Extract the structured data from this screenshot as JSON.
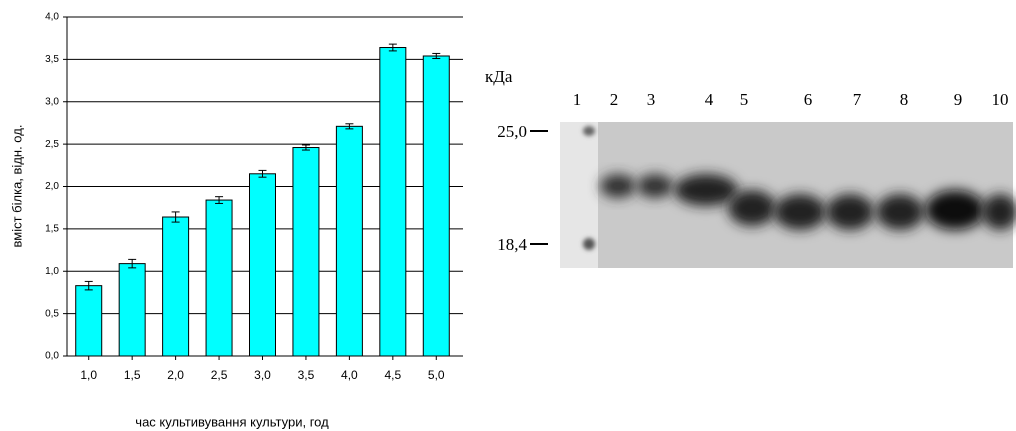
{
  "chart_data": {
    "type": "bar",
    "y_label": "вміст білка, відн. од.",
    "x_label": "час культивування культури, год",
    "categories": [
      "1,0",
      "1,5",
      "2,0",
      "2,5",
      "3,0",
      "3,5",
      "4,0",
      "4,5",
      "5,0"
    ],
    "values": [
      0.83,
      1.09,
      1.64,
      1.84,
      2.15,
      2.46,
      2.71,
      3.64,
      3.54
    ],
    "errors": [
      0.05,
      0.05,
      0.06,
      0.04,
      0.04,
      0.03,
      0.03,
      0.04,
      0.03
    ],
    "color": "#00ffff",
    "ylim": [
      0,
      4
    ],
    "yticks": [
      {
        "value": 0,
        "label": "0,0"
      },
      {
        "value": 0.5,
        "label": "0,5"
      },
      {
        "value": 1,
        "label": "1,0"
      },
      {
        "value": 1.5,
        "label": "1,5"
      },
      {
        "value": 2,
        "label": "2,0"
      },
      {
        "value": 2.5,
        "label": "2,5"
      },
      {
        "value": 3,
        "label": "3,0"
      },
      {
        "value": 3.5,
        "label": "3,5"
      },
      {
        "value": 4,
        "label": "4,0"
      }
    ],
    "grid": true
  },
  "gel": {
    "unit_label": "кДа",
    "lane_labels": [
      "1",
      "2",
      "3",
      "4",
      "5",
      "6",
      "7",
      "8",
      "9",
      "10"
    ],
    "markers": [
      "25,0",
      "18,4"
    ]
  }
}
